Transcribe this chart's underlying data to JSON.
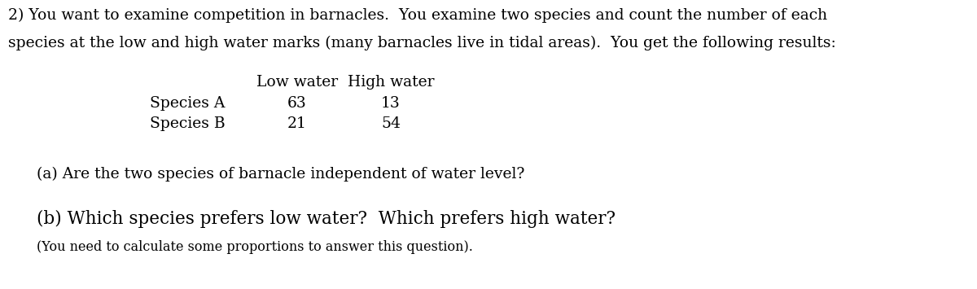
{
  "background_color": "#ffffff",
  "text_color": "#000000",
  "intro_line1": "2) You want to examine competition in barnacles.  You examine two species and count the number of each",
  "intro_line2": "species at the low and high water marks (many barnacles live in tidal areas).  You get the following results:",
  "col_headers": [
    "Low water",
    "High water"
  ],
  "row_labels": [
    "Species A",
    "Species B"
  ],
  "data": [
    [
      63,
      13
    ],
    [
      21,
      54
    ]
  ],
  "question_a": "(a) Are the two species of barnacle independent of water level?",
  "question_b": "(b) Which species prefers low water?  Which prefers high water?",
  "question_b_sub": "(You need to calculate some proportions to answer this question).",
  "font_size_intro": 13.5,
  "font_size_table_header": 13.5,
  "font_size_table_data": 13.5,
  "font_size_question_a": 13.5,
  "font_size_question_b": 15.5,
  "font_size_question_b_sub": 11.5,
  "figwidth": 12.0,
  "figheight": 3.55,
  "dpi": 100
}
